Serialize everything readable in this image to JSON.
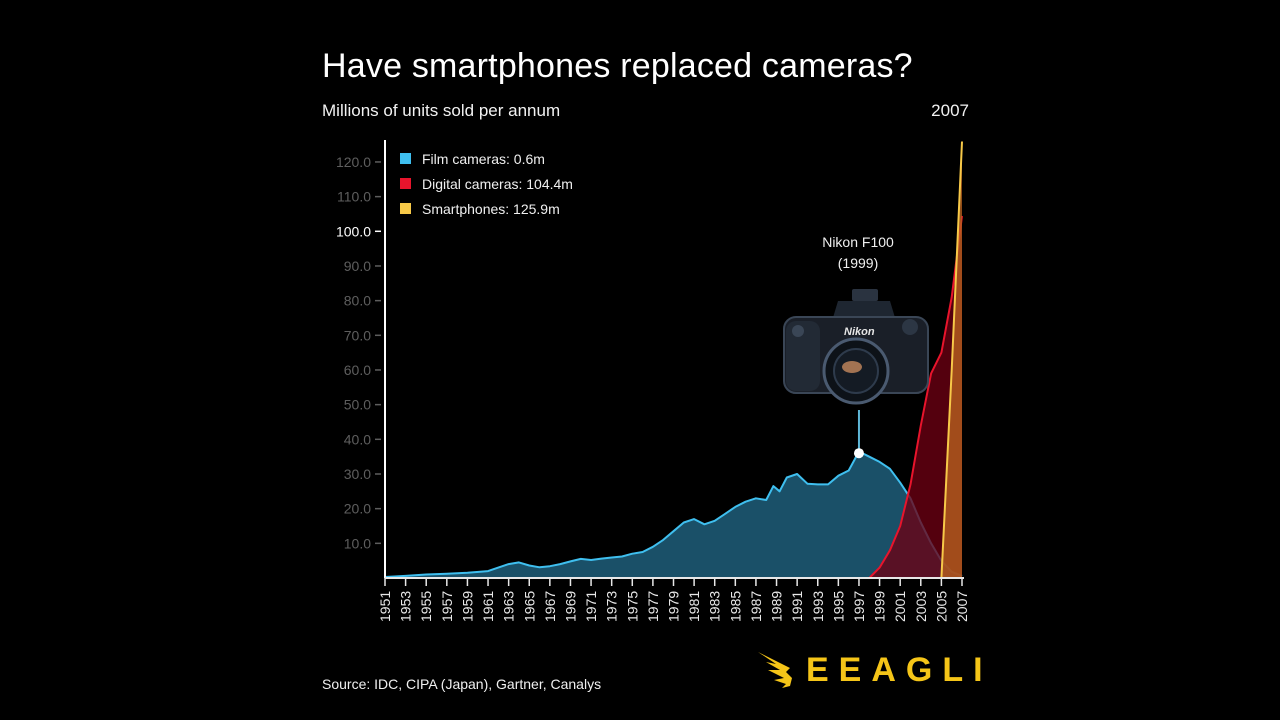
{
  "header": {
    "title": "Have smartphones replaced cameras?",
    "subtitle": "Millions of units sold per annum",
    "current_year": "2007"
  },
  "legend": [
    {
      "label": "Film cameras: 0.6m",
      "color": "#3fbfef"
    },
    {
      "label": "Digital cameras: 104.4m",
      "color": "#e8142c"
    },
    {
      "label": "Smartphones: 125.9m",
      "color": "#f7c948"
    }
  ],
  "annotation": {
    "line1": "Nikon F100",
    "line2": "(1999)",
    "image": "camera-photo"
  },
  "footer": {
    "source": "Source: IDC, CIPA (Japan), Gartner, Canalys",
    "brand": "EEAGLI",
    "brand_icon": "eagle-icon",
    "brand_color": "#f5c518"
  },
  "chart_data": {
    "type": "area",
    "title": "Have smartphones replaced cameras?",
    "subtitle": "Millions of units sold per annum",
    "xlabel": "",
    "ylabel": "Millions of units sold per annum",
    "ylim": [
      0,
      126
    ],
    "xlim": [
      1951,
      2007
    ],
    "grid": false,
    "legend_position": "top-left",
    "y_ticks": [
      "10.0",
      "20.0",
      "30.0",
      "40.0",
      "50.0",
      "60.0",
      "70.0",
      "80.0",
      "90.0",
      "100.0",
      "110.0",
      "120.0"
    ],
    "x_ticks": [
      "1951",
      "1953",
      "1955",
      "1957",
      "1959",
      "1961",
      "1963",
      "1965",
      "1967",
      "1969",
      "1971",
      "1973",
      "1975",
      "1977",
      "1979",
      "1981",
      "1983",
      "1985",
      "1987",
      "1989",
      "1991",
      "1993",
      "1995",
      "1997",
      "1999",
      "2001",
      "2003",
      "2005",
      "2007"
    ],
    "annotations": [
      {
        "text": "Nikon F100 (1999)",
        "x": 1997,
        "y": 36
      }
    ],
    "series": [
      {
        "name": "Film cameras",
        "color": "#3fbfef",
        "fill": "#1a5068",
        "final_label": "0.6m",
        "points": [
          [
            1951,
            0.3
          ],
          [
            1953,
            0.6
          ],
          [
            1955,
            1.0
          ],
          [
            1957,
            1.2
          ],
          [
            1959,
            1.5
          ],
          [
            1961,
            2.0
          ],
          [
            1962,
            3.0
          ],
          [
            1963,
            4.0
          ],
          [
            1964,
            4.5
          ],
          [
            1965,
            3.6
          ],
          [
            1966,
            3.1
          ],
          [
            1967,
            3.4
          ],
          [
            1968,
            4.0
          ],
          [
            1969,
            4.8
          ],
          [
            1970,
            5.5
          ],
          [
            1971,
            5.2
          ],
          [
            1972,
            5.6
          ],
          [
            1973,
            5.9
          ],
          [
            1974,
            6.2
          ],
          [
            1975,
            7.0
          ],
          [
            1976,
            7.5
          ],
          [
            1977,
            9.0
          ],
          [
            1978,
            11.0
          ],
          [
            1979,
            13.5
          ],
          [
            1980,
            16.0
          ],
          [
            1981,
            17.0
          ],
          [
            1982,
            15.5
          ],
          [
            1983,
            16.5
          ],
          [
            1984,
            18.5
          ],
          [
            1985,
            20.5
          ],
          [
            1986,
            22.0
          ],
          [
            1987,
            23.0
          ],
          [
            1988,
            22.5
          ],
          [
            1988.7,
            26.5
          ],
          [
            1989.3,
            25.0
          ],
          [
            1990,
            29.0
          ],
          [
            1991,
            30.0
          ],
          [
            1992,
            27.2
          ],
          [
            1993,
            27.0
          ],
          [
            1994,
            27.0
          ],
          [
            1995,
            29.5
          ],
          [
            1996,
            31.0
          ],
          [
            1997,
            36.5
          ],
          [
            1998,
            35.0
          ],
          [
            1999,
            33.5
          ],
          [
            2000,
            31.5
          ],
          [
            2001,
            27.5
          ],
          [
            2002,
            23.0
          ],
          [
            2003,
            16.0
          ],
          [
            2004,
            10.0
          ],
          [
            2005,
            5.0
          ],
          [
            2006,
            1.8
          ],
          [
            2007,
            0.6
          ]
        ]
      },
      {
        "name": "Digital cameras",
        "color": "#e8142c",
        "fill": "#6b0012",
        "final_label": "104.4m",
        "points": [
          [
            1998,
            0
          ],
          [
            1999,
            3.0
          ],
          [
            2000,
            8.0
          ],
          [
            2001,
            15.0
          ],
          [
            2002,
            27.0
          ],
          [
            2003,
            44.0
          ],
          [
            2004,
            59.0
          ],
          [
            2005,
            65.0
          ],
          [
            2006,
            81.0
          ],
          [
            2007,
            104.4
          ]
        ]
      },
      {
        "name": "Smartphones",
        "color": "#f7c948",
        "fill": "#b8621f",
        "final_label": "125.9m",
        "points": [
          [
            2005,
            0
          ],
          [
            2006,
            60.0
          ],
          [
            2007,
            125.9
          ]
        ]
      }
    ]
  }
}
